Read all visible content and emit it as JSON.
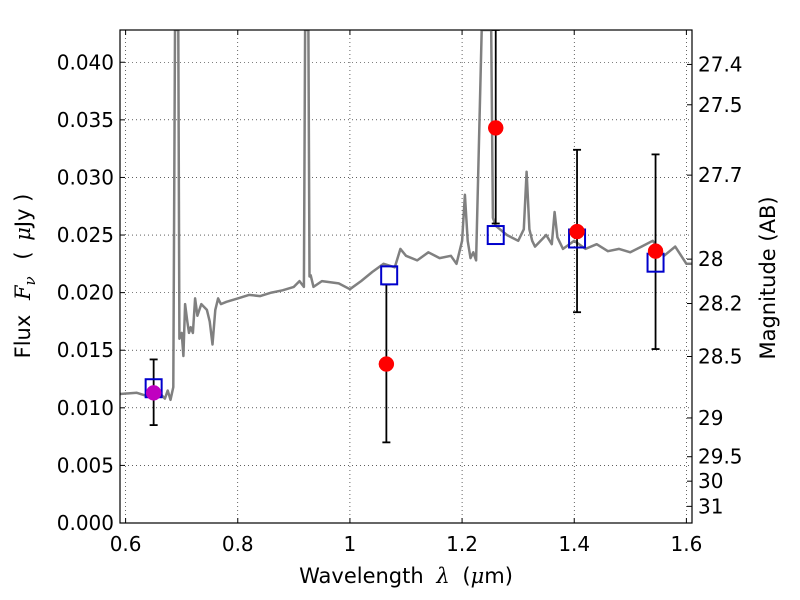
{
  "chart_data": {
    "type": "scatter",
    "xlabel_text": "Wavelength",
    "xlabel_symbol": "λ",
    "xlabel_unit_open": "(",
    "xlabel_unit_mu": "μ",
    "xlabel_unit_rest": "m)",
    "ylabel_text": "Flux",
    "ylabel_symbol": "F",
    "ylabel_sub": "ν",
    "ylabel_unit_open": "(",
    "ylabel_unit_mu": "μ",
    "ylabel_unit_rest": "Jy )",
    "y2label": "Magnitude (AB)",
    "xlim": [
      0.59,
      1.61
    ],
    "ylim": [
      0.0,
      0.0428
    ],
    "grid": true,
    "x_ticks": [
      {
        "value": 0.6,
        "label": "0.6"
      },
      {
        "value": 0.8,
        "label": "0.8"
      },
      {
        "value": 1.0,
        "label": "1"
      },
      {
        "value": 1.2,
        "label": "1.2"
      },
      {
        "value": 1.4,
        "label": "1.4"
      },
      {
        "value": 1.6,
        "label": "1.6"
      }
    ],
    "y_ticks": [
      {
        "value": 0.0,
        "label": "0.000"
      },
      {
        "value": 0.005,
        "label": "0.005"
      },
      {
        "value": 0.01,
        "label": "0.010"
      },
      {
        "value": 0.015,
        "label": "0.015"
      },
      {
        "value": 0.02,
        "label": "0.020"
      },
      {
        "value": 0.025,
        "label": "0.025"
      },
      {
        "value": 0.03,
        "label": "0.030"
      },
      {
        "value": 0.035,
        "label": "0.035"
      },
      {
        "value": 0.04,
        "label": "0.040"
      }
    ],
    "y2_ticks": [
      {
        "mag": 27.4,
        "label": "27.4"
      },
      {
        "mag": 27.5,
        "label": "27.5"
      },
      {
        "mag": 27.7,
        "label": "27.7"
      },
      {
        "mag": 28.0,
        "label": "28"
      },
      {
        "mag": 28.2,
        "label": "28.2"
      },
      {
        "mag": 28.5,
        "label": "28.5"
      },
      {
        "mag": 29.0,
        "label": "29"
      },
      {
        "mag": 29.5,
        "label": "29.5"
      },
      {
        "mag": 30.0,
        "label": "30"
      },
      {
        "mag": 31.0,
        "label": "31"
      }
    ],
    "colors": {
      "spectrum": "#808080",
      "observed": "#ff0000",
      "model": "#0000cc",
      "errorbar": "#000000",
      "overlap": "#c000c0"
    },
    "model_spectrum": {
      "x": [
        0.59,
        0.62,
        0.64,
        0.66,
        0.67,
        0.675,
        0.68,
        0.685,
        0.688,
        0.69,
        0.692,
        0.694,
        0.696,
        0.7,
        0.703,
        0.706,
        0.71,
        0.713,
        0.716,
        0.72,
        0.724,
        0.728,
        0.735,
        0.745,
        0.75,
        0.755,
        0.76,
        0.765,
        0.77,
        0.78,
        0.8,
        0.82,
        0.84,
        0.86,
        0.88,
        0.9,
        0.91,
        0.918,
        0.92,
        0.922,
        0.924,
        0.926,
        0.928,
        0.93,
        0.935,
        0.95,
        0.98,
        1.0,
        1.02,
        1.04,
        1.06,
        1.08,
        1.09,
        1.1,
        1.12,
        1.14,
        1.16,
        1.18,
        1.19,
        1.2,
        1.205,
        1.21,
        1.215,
        1.22,
        1.225,
        1.235,
        1.24,
        1.245,
        1.248,
        1.25,
        1.252,
        1.255,
        1.26,
        1.28,
        1.3,
        1.31,
        1.315,
        1.32,
        1.325,
        1.33,
        1.35,
        1.36,
        1.365,
        1.37,
        1.38,
        1.4,
        1.42,
        1.44,
        1.46,
        1.48,
        1.5,
        1.52,
        1.54,
        1.56,
        1.58,
        1.6,
        1.61
      ],
      "y": [
        0.0112,
        0.0113,
        0.011,
        0.0113,
        0.0108,
        0.0115,
        0.0107,
        0.0118,
        0.0428,
        0.0428,
        0.0428,
        0.0428,
        0.016,
        0.0165,
        0.0145,
        0.019,
        0.0175,
        0.0165,
        0.017,
        0.0165,
        0.0195,
        0.018,
        0.019,
        0.0185,
        0.0175,
        0.0155,
        0.0185,
        0.0195,
        0.019,
        0.0192,
        0.0195,
        0.0198,
        0.0197,
        0.02,
        0.0202,
        0.0205,
        0.021,
        0.0205,
        0.0428,
        0.0428,
        0.0428,
        0.0428,
        0.0214,
        0.0215,
        0.0205,
        0.021,
        0.0208,
        0.0203,
        0.021,
        0.0218,
        0.0225,
        0.0222,
        0.0238,
        0.0232,
        0.0228,
        0.0235,
        0.023,
        0.0232,
        0.0225,
        0.0245,
        0.0285,
        0.0245,
        0.023,
        0.0235,
        0.0228,
        0.0428,
        0.0428,
        0.0428,
        0.0428,
        0.0428,
        0.0428,
        0.0265,
        0.0258,
        0.025,
        0.0245,
        0.0255,
        0.0305,
        0.0255,
        0.0245,
        0.024,
        0.025,
        0.0242,
        0.027,
        0.0248,
        0.0238,
        0.0245,
        0.0238,
        0.0242,
        0.0236,
        0.0238,
        0.0235,
        0.024,
        0.0245,
        0.0232,
        0.024,
        0.0225,
        0.0225
      ]
    },
    "model_photometry": {
      "x": [
        0.65,
        1.07,
        1.26,
        1.405,
        1.545
      ],
      "y": [
        0.0117,
        0.0215,
        0.025,
        0.0247,
        0.0226
      ]
    },
    "observed": {
      "x": [
        0.65,
        1.065,
        1.26,
        1.405,
        1.545
      ],
      "y": [
        0.0113,
        0.0138,
        0.0343,
        0.0253,
        0.0236
      ],
      "err_low": [
        0.0085,
        0.007,
        0.026,
        0.0183,
        0.0151
      ],
      "err_high": [
        0.0142,
        0.0207,
        0.0428,
        0.0324,
        0.032
      ]
    }
  }
}
